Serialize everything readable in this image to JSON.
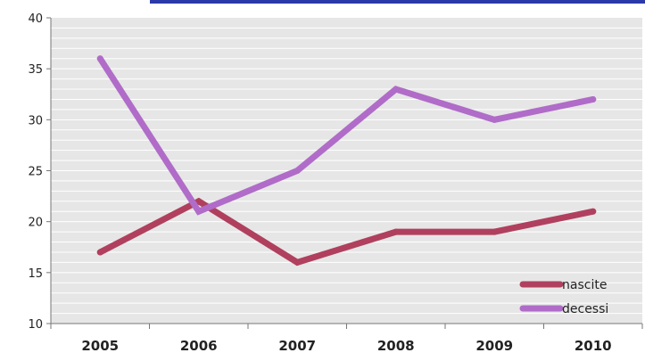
{
  "chart_data": {
    "type": "line",
    "categories": [
      "2005",
      "2006",
      "2007",
      "2008",
      "2009",
      "2010"
    ],
    "series": [
      {
        "name": "nascite",
        "values": [
          17,
          22,
          16,
          19,
          19,
          21
        ],
        "color": "#b0405e"
      },
      {
        "name": "decessi",
        "values": [
          36,
          21,
          25,
          33,
          30,
          32
        ],
        "color": "#b06cc8"
      }
    ],
    "ylim": [
      10,
      40
    ],
    "yticks": [
      "10",
      "15",
      "20",
      "25",
      "30",
      "35",
      "40"
    ],
    "title": "",
    "xlabel": "",
    "ylabel": "",
    "grid": true,
    "legend_position": "bottom-right",
    "colors": {
      "plot_background": "#e6e6e6",
      "gridline": "#ffffff",
      "top_banner": "#2b3aa8"
    }
  }
}
